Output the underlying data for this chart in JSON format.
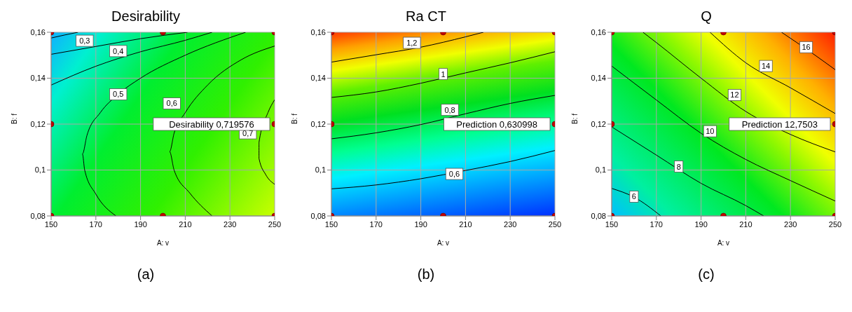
{
  "chart_data": [
    {
      "type": "line",
      "title": "Desirability",
      "xlabel": "A: v",
      "ylabel": "B: f",
      "xlim": [
        150,
        250
      ],
      "xticks": [
        150,
        170,
        190,
        210,
        230,
        250
      ],
      "ylim": [
        0.08,
        0.16
      ],
      "yticks": [
        {
          "value": 0.08,
          "label": "0,08"
        },
        {
          "value": 0.1,
          "label": "0,1"
        },
        {
          "value": 0.12,
          "label": "0,12"
        },
        {
          "value": 0.14,
          "label": "0,14"
        },
        {
          "value": 0.16,
          "label": "0,16"
        }
      ],
      "grid": true,
      "series": [
        {
          "color": "#000000",
          "x": [
            150,
            156,
            162
          ],
          "values": [
            0.1575,
            0.1588,
            0.16
          ]
        },
        {
          "color": "#000000",
          "x": [
            150,
            170,
            190,
            211
          ],
          "values": [
            0.1504,
            0.1538,
            0.1572,
            0.16
          ]
        },
        {
          "color": "#000000",
          "x": [
            150,
            170,
            190,
            210,
            222
          ],
          "values": [
            0.137,
            0.1452,
            0.1515,
            0.1565,
            0.16
          ]
        },
        {
          "color": "#000000",
          "x": [
            179,
            170,
            165,
            164,
            166,
            172,
            180,
            190,
            210,
            237
          ],
          "values": [
            0.08,
            0.0895,
            0.1,
            0.107,
            0.115,
            0.125,
            0.133,
            0.14,
            0.15,
            0.16
          ]
        },
        {
          "color": "#000000",
          "x": [
            222,
            212,
            205,
            203,
            205,
            210,
            220,
            235,
            250
          ],
          "values": [
            0.08,
            0.09,
            0.1,
            0.108,
            0.116,
            0.125,
            0.137,
            0.148,
            0.154
          ]
        },
        {
          "color": "#000000",
          "x": [
            250,
            247,
            243,
            243,
            246,
            250
          ],
          "values": [
            0.1306,
            0.125,
            0.112,
            0.105,
            0.098,
            0.0938
          ]
        },
        {
          "type": "scatter",
          "color": "#c00000",
          "marker": "circle",
          "x": [
            150,
            200,
            250,
            150,
            250,
            150,
            200,
            250
          ],
          "values": [
            0.08,
            0.08,
            0.08,
            0.12,
            0.12,
            0.16,
            0.16,
            0.16
          ]
        }
      ],
      "annotations": [
        {
          "text": "0,3",
          "x": 165,
          "y": 0.1563
        },
        {
          "text": "0,4",
          "x": 180,
          "y": 0.1518
        },
        {
          "text": "0,5",
          "x": 180,
          "y": 0.133
        },
        {
          "text": "0,6",
          "x": 204,
          "y": 0.129
        },
        {
          "text": "0,7",
          "x": 238,
          "y": 0.116
        },
        {
          "text": "Desirability  0,719576",
          "x": 250,
          "y": 0.12
        },
        "(a)"
      ]
    },
    {
      "type": "line",
      "title": "Ra CT",
      "xlabel": "A: v",
      "ylabel": "B: f",
      "xlim": [
        150,
        250
      ],
      "xticks": [
        150,
        170,
        190,
        210,
        230,
        250
      ],
      "ylim": [
        0.08,
        0.16
      ],
      "yticks": [
        {
          "value": 0.08,
          "label": "0,08"
        },
        {
          "value": 0.1,
          "label": "0,1"
        },
        {
          "value": 0.12,
          "label": "0,12"
        },
        {
          "value": 0.14,
          "label": "0,14"
        },
        {
          "value": 0.16,
          "label": "0,16"
        }
      ],
      "grid": true,
      "series": [
        {
          "color": "#000000",
          "x": [
            150,
            170,
            190,
            210,
            218
          ],
          "values": [
            0.147,
            0.1502,
            0.1535,
            0.158,
            0.16
          ]
        },
        {
          "color": "#000000",
          "x": [
            150,
            170,
            190,
            210,
            230,
            250
          ],
          "values": [
            0.1316,
            0.134,
            0.1378,
            0.1423,
            0.1467,
            0.1515
          ]
        },
        {
          "color": "#000000",
          "x": [
            150,
            170,
            190,
            210,
            230,
            250
          ],
          "values": [
            0.1136,
            0.1162,
            0.1198,
            0.1245,
            0.129,
            0.1325
          ]
        },
        {
          "color": "#000000",
          "x": [
            150,
            170,
            190,
            210,
            230,
            250
          ],
          "values": [
            0.0918,
            0.0935,
            0.0962,
            0.0998,
            0.1037,
            0.1085
          ]
        },
        {
          "type": "scatter",
          "color": "#c00000",
          "marker": "circle",
          "x": [
            150,
            200,
            250,
            150,
            250,
            150,
            200,
            250
          ],
          "values": [
            0.08,
            0.08,
            0.08,
            0.12,
            0.12,
            0.16,
            0.16,
            0.16
          ]
        }
      ],
      "annotations": [
        {
          "text": "1,2",
          "x": 186,
          "y": 0.1554
        },
        {
          "text": "1",
          "x": 200,
          "y": 0.1418
        },
        {
          "text": "0,8",
          "x": 203,
          "y": 0.1262
        },
        {
          "text": "0,6",
          "x": 205,
          "y": 0.0983
        },
        {
          "text": "Prediction  0,630998",
          "x": 250,
          "y": 0.12
        },
        "(b)"
      ]
    },
    {
      "type": "line",
      "title": "Q",
      "xlabel": "A: v",
      "ylabel": "B: f",
      "xlim": [
        150,
        250
      ],
      "xticks": [
        150,
        170,
        190,
        210,
        230,
        250
      ],
      "ylim": [
        0.08,
        0.16
      ],
      "yticks": [
        {
          "value": 0.08,
          "label": "0,08"
        },
        {
          "value": 0.1,
          "label": "0,1"
        },
        {
          "value": 0.12,
          "label": "0,12"
        },
        {
          "value": 0.14,
          "label": "0,14"
        },
        {
          "value": 0.16,
          "label": "0,16"
        }
      ],
      "grid": true,
      "series": [
        {
          "color": "#000000",
          "x": [
            150,
            160,
            172
          ],
          "values": [
            0.092,
            0.0882,
            0.08
          ]
        },
        {
          "color": "#000000",
          "x": [
            150,
            170,
            190,
            210,
            218
          ],
          "values": [
            0.1188,
            0.1065,
            0.0942,
            0.0845,
            0.08
          ]
        },
        {
          "color": "#000000",
          "x": [
            150,
            170,
            190,
            210,
            230,
            250
          ],
          "values": [
            0.1453,
            0.1305,
            0.116,
            0.1046,
            0.0954,
            0.0865
          ]
        },
        {
          "color": "#000000",
          "x": [
            164,
            170,
            190,
            210,
            230,
            250
          ],
          "values": [
            0.16,
            0.1555,
            0.14,
            0.1255,
            0.1155,
            0.1079
          ]
        },
        {
          "color": "#000000",
          "x": [
            194,
            210,
            230,
            250
          ],
          "values": [
            0.16,
            0.1467,
            0.1358,
            0.1246
          ]
        },
        {
          "color": "#000000",
          "x": [
            226,
            240,
            250
          ],
          "values": [
            0.16,
            0.1507,
            0.1437
          ]
        },
        {
          "type": "scatter",
          "color": "#c00000",
          "marker": "circle",
          "x": [
            150,
            200,
            250,
            150,
            250,
            150,
            200,
            250
          ],
          "values": [
            0.08,
            0.08,
            0.08,
            0.12,
            0.12,
            0.16,
            0.16,
            0.16
          ]
        }
      ],
      "annotations": [
        {
          "text": "6",
          "x": 160,
          "y": 0.0884
        },
        {
          "text": "8",
          "x": 180,
          "y": 0.1015
        },
        {
          "text": "10",
          "x": 194,
          "y": 0.1169
        },
        {
          "text": "12",
          "x": 205,
          "y": 0.1327
        },
        {
          "text": "14",
          "x": 219,
          "y": 0.1453
        },
        {
          "text": "16",
          "x": 237,
          "y": 0.1535
        },
        {
          "text": "Prediction  12,7503",
          "x": 250,
          "y": 0.12
        },
        "(c)"
      ]
    }
  ]
}
